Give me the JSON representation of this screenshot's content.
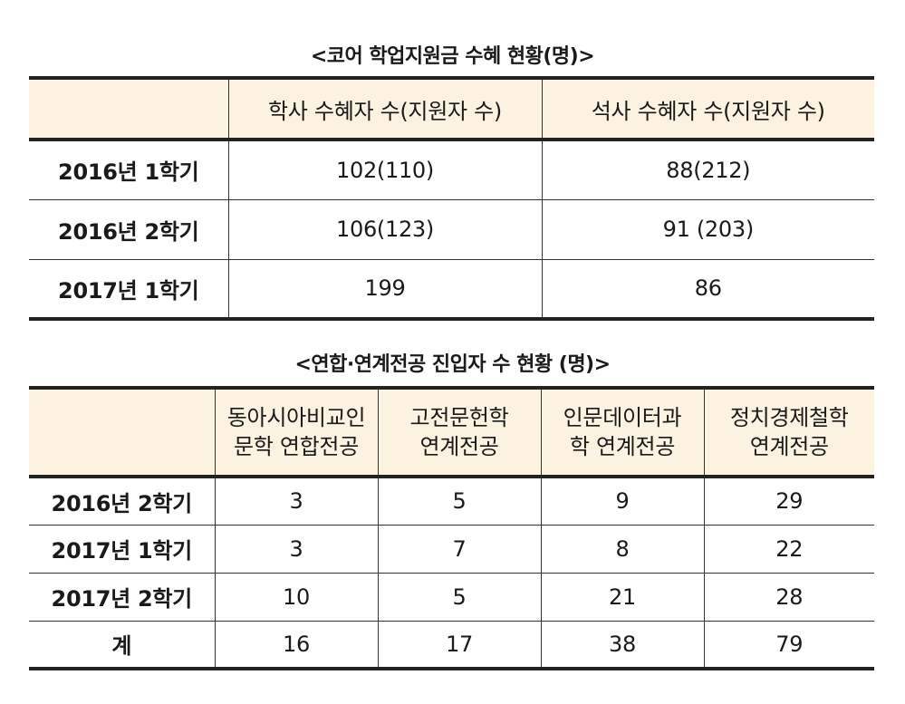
{
  "table1": {
    "caption": "<코어 학업지원금 수혜 현황(명)>",
    "headers": [
      "",
      "학사 수혜자 수(지원자 수)",
      "석사 수혜자 수(지원자 수)"
    ],
    "rows": [
      {
        "label": "2016년 1학기",
        "values": [
          "102(110)",
          "88(212)"
        ]
      },
      {
        "label": "2016년 2학기",
        "values": [
          "106(123)",
          "91 (203)"
        ]
      },
      {
        "label": "2017년 1학기",
        "values": [
          "199",
          "86"
        ]
      }
    ]
  },
  "table2": {
    "caption": "<연합·연계전공 진입자 수 현황 (명)>",
    "headers": [
      {
        "line1": "동아시아비교인",
        "line2": "문학 연합전공"
      },
      {
        "line1": "고전문헌학",
        "line2": "연계전공"
      },
      {
        "line1": "인문데이터과",
        "line2": "학 연계전공"
      },
      {
        "line1": "정치경제철학",
        "line2": "연계전공"
      }
    ],
    "rows": [
      {
        "label": "2016년 2학기",
        "values": [
          "3",
          "5",
          "9",
          "29"
        ]
      },
      {
        "label": "2017년 1학기",
        "values": [
          "3",
          "7",
          "8",
          "22"
        ]
      },
      {
        "label": "2017년 2학기",
        "values": [
          "10",
          "5",
          "21",
          "28"
        ]
      },
      {
        "label": "계",
        "values": [
          "16",
          "17",
          "38",
          "79"
        ]
      }
    ]
  },
  "colors": {
    "header_bg": "#fbf3df",
    "rule": "#222222"
  }
}
